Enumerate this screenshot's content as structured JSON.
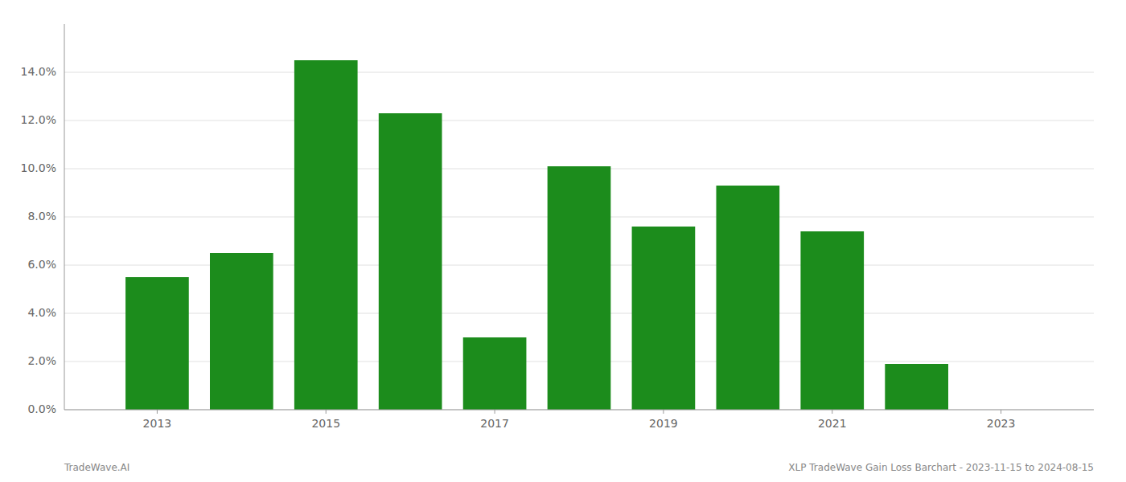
{
  "chart_data": {
    "type": "bar",
    "x": [
      2013,
      2014,
      2015,
      2016,
      2017,
      2018,
      2019,
      2020,
      2021,
      2022
    ],
    "values": [
      0.055,
      0.065,
      0.145,
      0.123,
      0.03,
      0.101,
      0.076,
      0.093,
      0.074,
      0.019
    ],
    "color": "#1c8c1c",
    "xlim": [
      2011.9,
      2024.1
    ],
    "xticks": [
      2013,
      2015,
      2017,
      2019,
      2021,
      2023
    ],
    "ylim": [
      0,
      0.16
    ],
    "yticks": [
      {
        "value": 0.0,
        "label": "0.0%"
      },
      {
        "value": 0.02,
        "label": "2.0%"
      },
      {
        "value": 0.04,
        "label": "4.0%"
      },
      {
        "value": 0.06,
        "label": "6.0%"
      },
      {
        "value": 0.08,
        "label": "8.0%"
      },
      {
        "value": 0.1,
        "label": "10.0%"
      },
      {
        "value": 0.12,
        "label": "12.0%"
      },
      {
        "value": 0.14,
        "label": "14.0%"
      }
    ],
    "grid": true,
    "annotations": [
      "TradeWave.AI",
      "XLP TradeWave Gain Loss Barchart - 2023-11-15 to 2024-08-15"
    ]
  }
}
